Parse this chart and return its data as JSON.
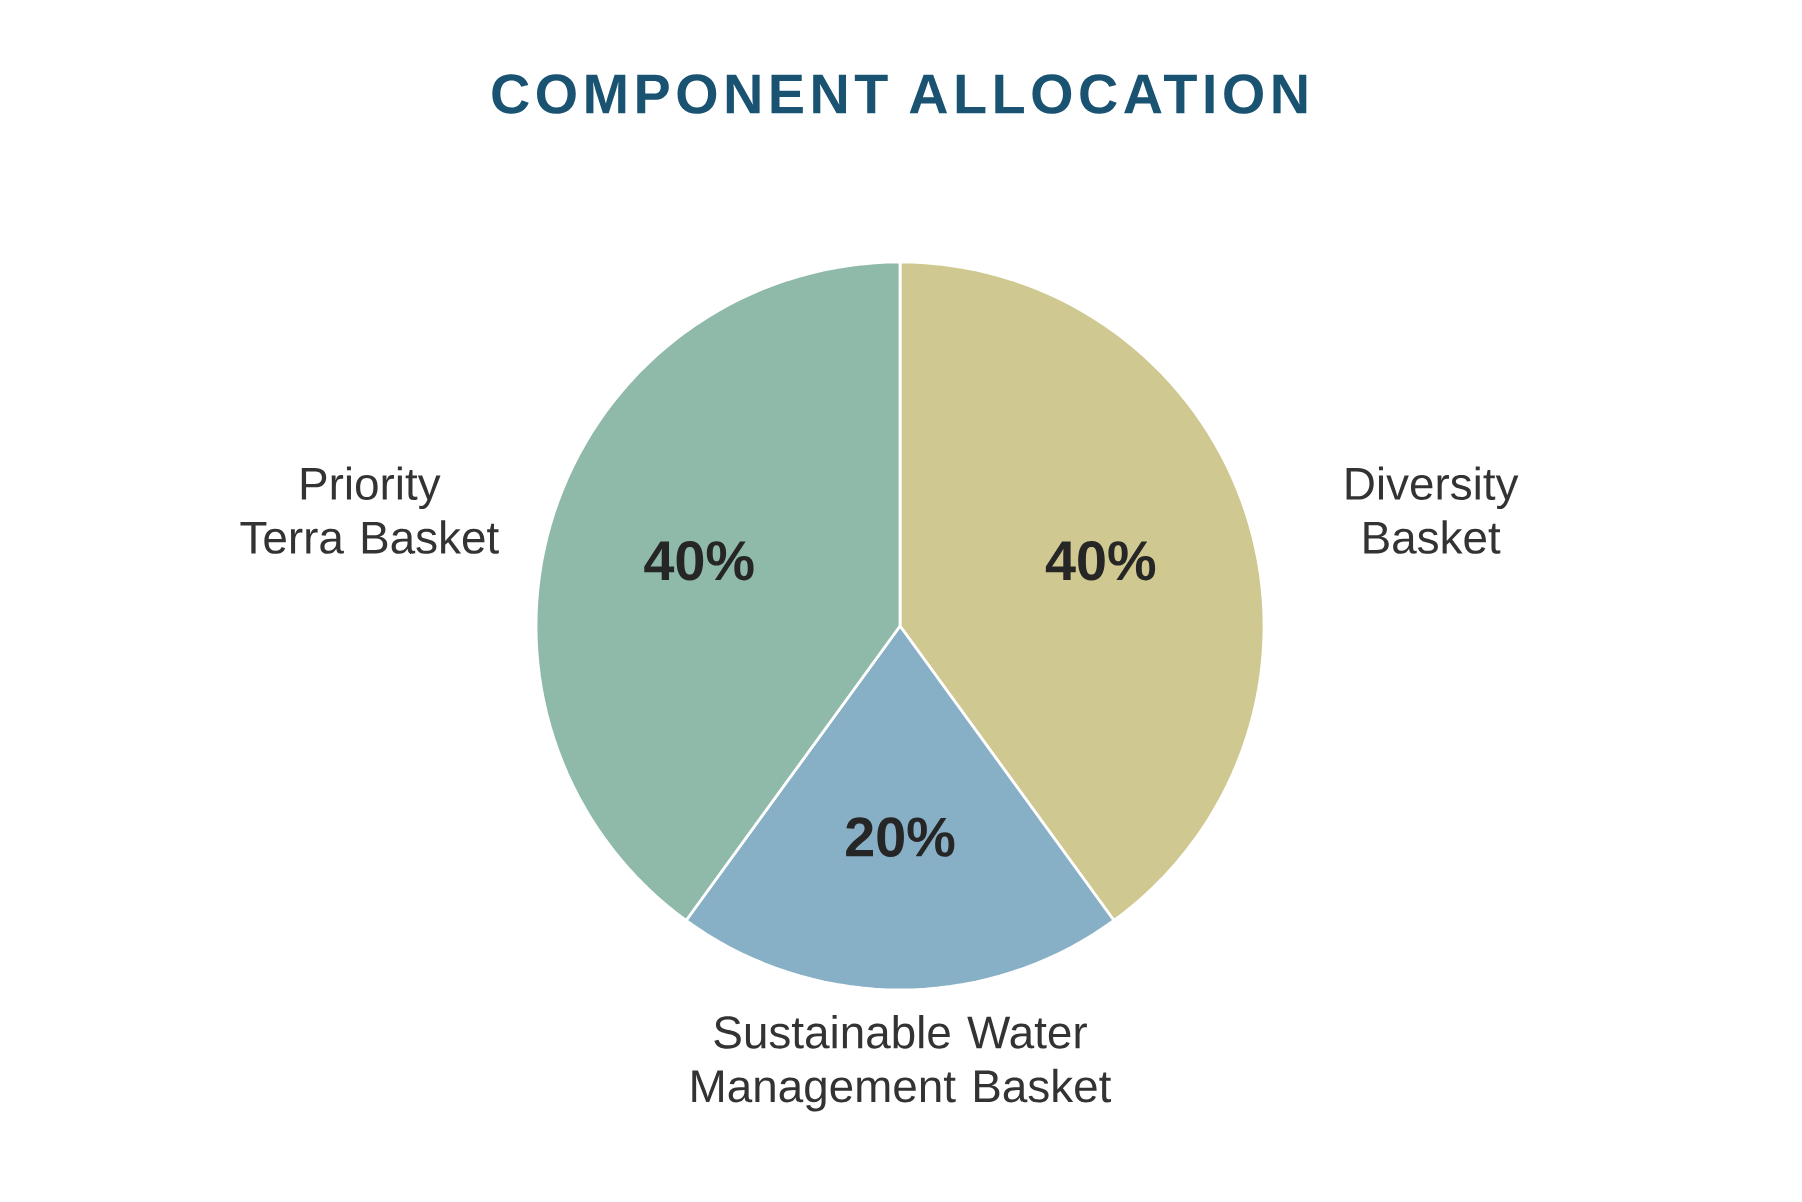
{
  "chart_data": {
    "type": "pie",
    "title": "COMPONENT ALLOCATION",
    "categories": [
      "Diversity Basket",
      "Sustainable Water Management Basket",
      "Priority Terra Basket"
    ],
    "values": [
      40,
      20,
      40
    ],
    "value_labels": [
      "40%",
      "20%",
      "40%"
    ],
    "colors": [
      "#cfc890",
      "#87afc6",
      "#8fb9a8"
    ]
  }
}
